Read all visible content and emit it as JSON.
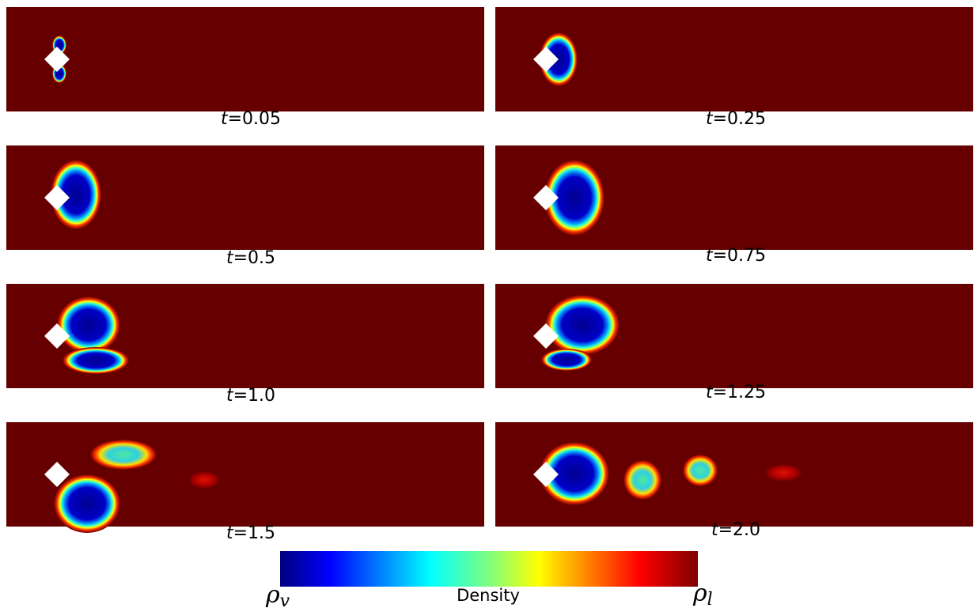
{
  "panels": [
    {
      "label": "t=0.05"
    },
    {
      "label": "t=0.25"
    },
    {
      "label": "t=0.5"
    },
    {
      "label": "t=0.75"
    },
    {
      "label": "t=1.0"
    },
    {
      "label": "t=1.25"
    },
    {
      "label": "t=1.5"
    },
    {
      "label": "t=2.0"
    }
  ],
  "colorbar": {
    "min_label": {
      "symbol": "ρ",
      "subscript": "v"
    },
    "title": "Density",
    "max_label": {
      "symbol": "ρ",
      "subscript": "l"
    }
  }
}
